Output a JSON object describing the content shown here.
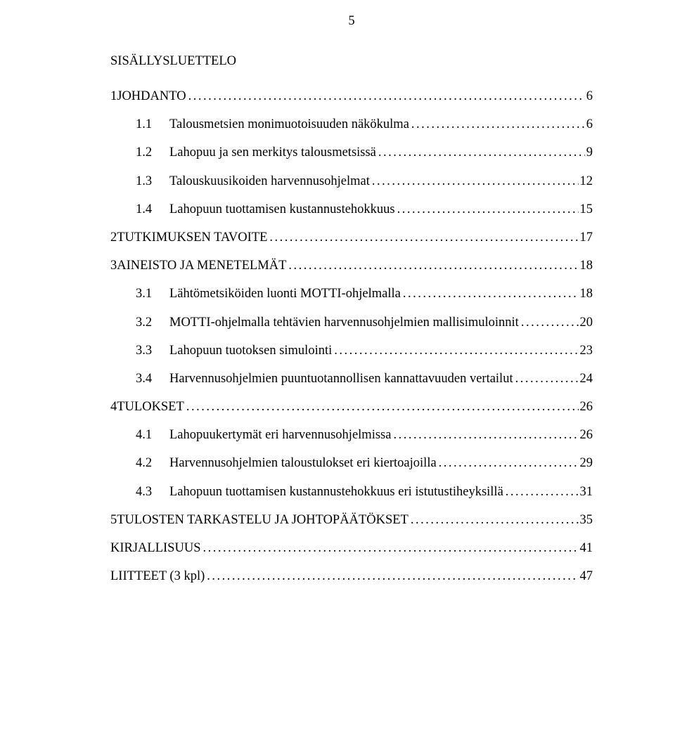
{
  "page_number": "5",
  "toc_title": "SISÄLLYSLUETTELO",
  "text_color": "#000000",
  "background_color": "#ffffff",
  "font_family": "Times New Roman",
  "body_fontsize_pt": 14,
  "entries": [
    {
      "level": 1,
      "num": "1 ",
      "label": "JOHDANTO",
      "page": "6"
    },
    {
      "level": 2,
      "num": "1.1",
      "label": "Talousmetsien monimuotoisuuden näkökulma",
      "page": "6"
    },
    {
      "level": 2,
      "num": "1.2",
      "label": "Lahopuu ja sen merkitys talousmetsissä",
      "page": "9"
    },
    {
      "level": 2,
      "num": "1.3",
      "label": "Talouskuusikoiden harvennusohjelmat",
      "page": "12"
    },
    {
      "level": 2,
      "num": "1.4",
      "label": "Lahopuun tuottamisen kustannustehokkuus",
      "page": "15"
    },
    {
      "level": 1,
      "num": "2 ",
      "label": "TUTKIMUKSEN TAVOITE",
      "page": "17"
    },
    {
      "level": 1,
      "num": "3 ",
      "label": "AINEISTO JA MENETELMÄT",
      "page": "18"
    },
    {
      "level": 2,
      "num": "3.1",
      "label": "Lähtömetsiköiden luonti MOTTI-ohjelmalla",
      "page": "18"
    },
    {
      "level": 2,
      "num": "3.2",
      "label": "MOTTI-ohjelmalla tehtävien harvennusohjelmien mallisimuloinnit",
      "page": "20"
    },
    {
      "level": 2,
      "num": "3.3",
      "label": "Lahopuun tuotoksen simulointi",
      "page": "23"
    },
    {
      "level": 2,
      "num": "3.4",
      "label": "Harvennusohjelmien puuntuotannollisen kannattavuuden vertailut",
      "page": "24"
    },
    {
      "level": 1,
      "num": "4 ",
      "label": "TULOKSET",
      "page": "26"
    },
    {
      "level": 2,
      "num": "4.1",
      "label": "Lahopuukertymät eri harvennusohjelmissa",
      "page": "26"
    },
    {
      "level": 2,
      "num": "4.2",
      "label": "Harvennusohjelmien taloustulokset eri kiertoajoilla",
      "page": "29"
    },
    {
      "level": 2,
      "num": "4.3",
      "label": "Lahopuun tuottamisen kustannustehokkuus eri istutustiheyksillä",
      "page": "31"
    },
    {
      "level": 1,
      "num": "5 ",
      "label": "TULOSTEN TARKASTELU JA JOHTOPÄÄTÖKSET",
      "page": "35"
    },
    {
      "level": 1,
      "num": "",
      "label": "KIRJALLISUUS",
      "page": "41"
    },
    {
      "level": 1,
      "num": "",
      "label": "LIITTEET (3 kpl)",
      "page": "47"
    }
  ]
}
